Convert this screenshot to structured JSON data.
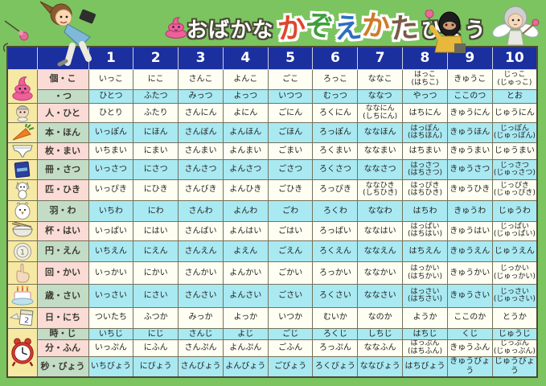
{
  "title": {
    "prefix": "おばかな",
    "highlight": "かぞえかた",
    "suffix": "ひょう",
    "highlight_colors": [
      "#e0452e",
      "#3f9e3c",
      "#2f6fbd",
      "#d07a2a",
      "#7a5a46"
    ]
  },
  "colors": {
    "page_bg": "#7cc45f",
    "header_bg": "#1b2f9e",
    "label_pink": "#fadbd5",
    "label_green": "#c3dcc6",
    "cell_white": "#fffef2",
    "cell_cyan": "#a9e9f2",
    "icon_column_yellow": "#f6e9a3"
  },
  "header": {
    "numbers": [
      "1",
      "2",
      "3",
      "4",
      "5",
      "6",
      "7",
      "8",
      "9",
      "10"
    ]
  },
  "rows": [
    {
      "icon": "poop-icon",
      "icon_span": 2,
      "label": "個・こ",
      "cells": [
        "いっこ",
        "にこ",
        "さんこ",
        "よんこ",
        "ごこ",
        "ろっこ",
        "ななこ",
        "はっこ\n(はちこ)",
        "きゅうこ",
        "じっこ\n(じゅっこ)"
      ]
    },
    {
      "label": "・つ",
      "cells": [
        "ひとつ",
        "ふたつ",
        "みっつ",
        "よっつ",
        "いつつ",
        "むっつ",
        "ななつ",
        "やっつ",
        "ここのつ",
        "とお"
      ]
    },
    {
      "icon": "person-icon",
      "label": "人・ひと",
      "cells": [
        "ひとり",
        "ふたり",
        "さんにん",
        "よにん",
        "ごにん",
        "ろくにん",
        "ななにん\n(しちにん)",
        "はちにん",
        "きゅうにん",
        "じゅうにん"
      ]
    },
    {
      "icon": "carrot-icon",
      "label": "本・ほん",
      "cells": [
        "いっぽん",
        "にほん",
        "さんぼん",
        "よんほん",
        "ごほん",
        "ろっぽん",
        "ななほん",
        "はっぽん\n(はちほん)",
        "きゅうほん",
        "じっぽん\n(じゅっぽん)"
      ]
    },
    {
      "icon": "underwear-icon",
      "label": "枚・まい",
      "cells": [
        "いちまい",
        "にまい",
        "さんまい",
        "よんまい",
        "ごまい",
        "ろくまい",
        "ななまい",
        "はちまい",
        "きゅうまい",
        "じゅうまい"
      ]
    },
    {
      "icon": "book-icon",
      "label": "冊・さつ",
      "cells": [
        "いっさつ",
        "にさつ",
        "さんさつ",
        "よんさつ",
        "ごさつ",
        "ろくさつ",
        "ななさつ",
        "はっさつ\n(はちさつ)",
        "きゅうさつ",
        "じっさつ\n(じゅっさつ)"
      ]
    },
    {
      "icon": "cat-icon",
      "label": "匹・ひき",
      "cells": [
        "いっぴき",
        "にひき",
        "さんびき",
        "よんひき",
        "ごひき",
        "ろっぴき",
        "ななひき\n(しちひき)",
        "はっぴき\n(はちひき)",
        "きゅうひき",
        "じっぴき\n(じゅっぴき)"
      ]
    },
    {
      "icon": "bird-icon",
      "label": "羽・わ",
      "cells": [
        "いちわ",
        "にわ",
        "さんわ",
        "よんわ",
        "ごわ",
        "ろくわ",
        "ななわ",
        "はちわ",
        "きゅうわ",
        "じゅうわ"
      ]
    },
    {
      "icon": "bowl-icon",
      "label": "杯・はい",
      "cells": [
        "いっぱい",
        "にはい",
        "さんばい",
        "よんはい",
        "ごはい",
        "ろっぱい",
        "ななはい",
        "はっぱい\n(はちはい)",
        "きゅうはい",
        "じっぱい\n(じゅっぱい)"
      ]
    },
    {
      "icon": "coin-icon",
      "label": "円・えん",
      "cells": [
        "いちえん",
        "にえん",
        "さんえん",
        "よえん",
        "ごえん",
        "ろくえん",
        "ななえん",
        "はちえん",
        "きゅうえん",
        "じゅうえん"
      ]
    },
    {
      "icon": "hand-icon",
      "label": "回・かい",
      "cells": [
        "いっかい",
        "にかい",
        "さんかい",
        "よんかい",
        "ごかい",
        "ろっかい",
        "ななかい",
        "はっかい\n(はちかい)",
        "きゅうかい",
        "じっかい\n(じゅっかい)"
      ]
    },
    {
      "icon": "cake-icon",
      "label": "歳・さい",
      "cells": [
        "いっさい",
        "にさい",
        "さんさい",
        "よんさい",
        "ごさい",
        "ろくさい",
        "ななさい",
        "はっさい\n(はちさい)",
        "きゅうさい",
        "じっさい\n(じゅっさい)"
      ]
    },
    {
      "icon": "calendar-icon",
      "label": "日・にち",
      "cells": [
        "ついたち",
        "ふつか",
        "みっか",
        "よっか",
        "いつか",
        "むいか",
        "なのか",
        "ようか",
        "ここのか",
        "とうか"
      ]
    },
    {
      "icon": "clock-icon",
      "icon_span": 3,
      "label": "時・じ",
      "cells": [
        "いちじ",
        "にじ",
        "さんじ",
        "よじ",
        "ごじ",
        "ろくじ",
        "しちじ",
        "はちじ",
        "くじ",
        "じゅうじ"
      ]
    },
    {
      "label": "分・ふん",
      "cells": [
        "いっぷん",
        "にふん",
        "さんぷん",
        "よんぷん",
        "ごふん",
        "ろっぷん",
        "ななふん",
        "はっぷん\n(はちふん)",
        "きゅうふん",
        "じっぷん\n(じゅっぷん)"
      ]
    },
    {
      "label": "秒・びょう",
      "cells": [
        "いちびょう",
        "にびょう",
        "さんびょう",
        "よんびょう",
        "ごびょう",
        "ろくびょう",
        "ななびょう",
        "はちびょう",
        "きゅうびょう",
        "じゅうびょう"
      ]
    }
  ]
}
